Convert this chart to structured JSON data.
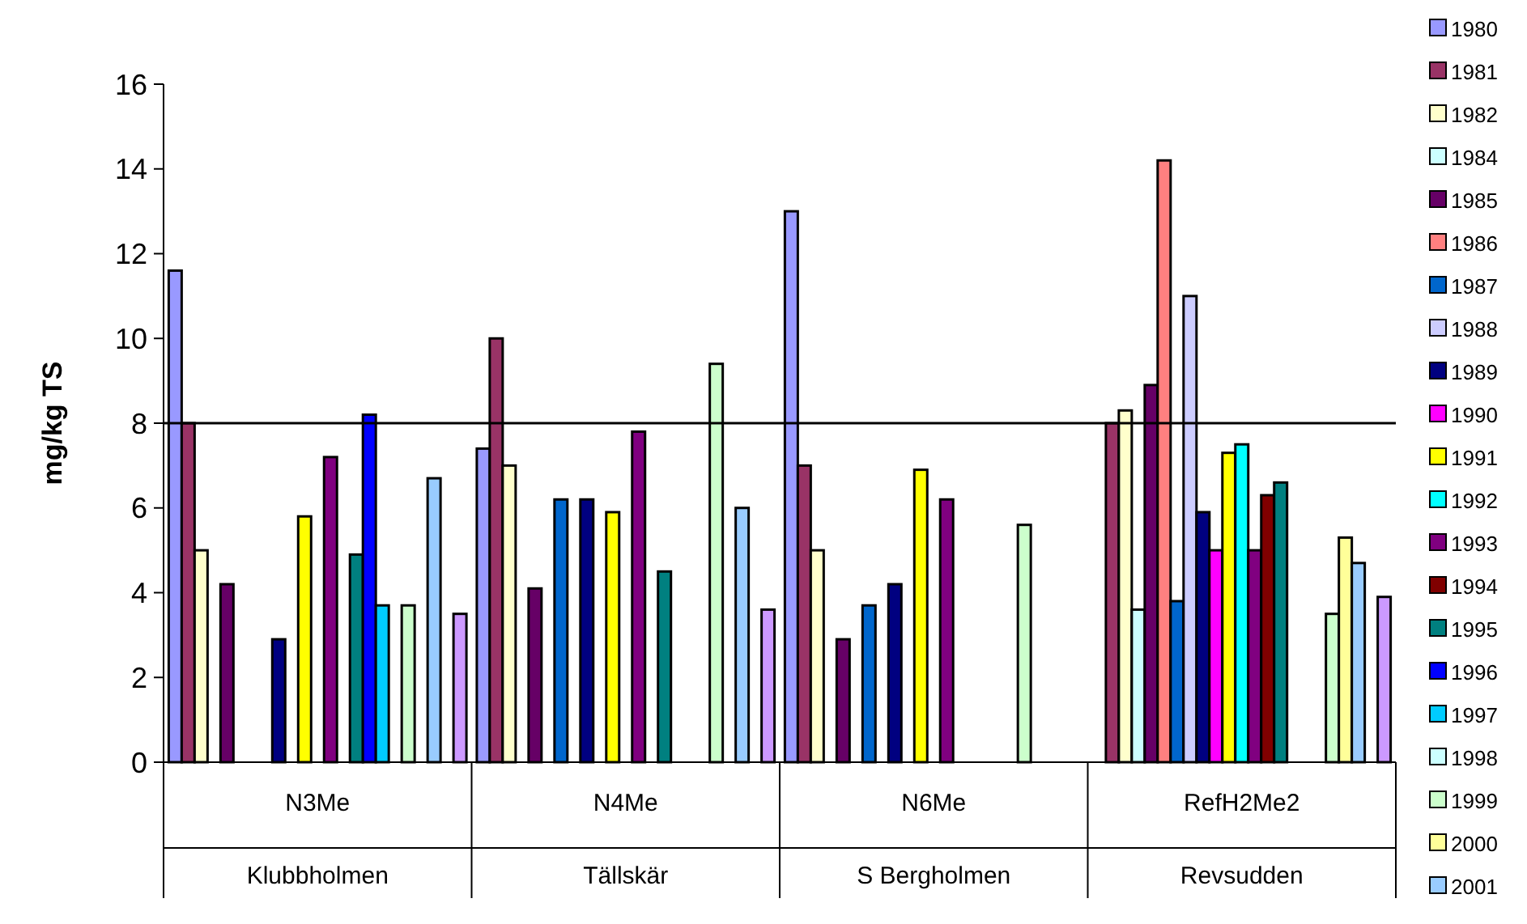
{
  "chart_data": {
    "type": "bar",
    "ylabel": "mg/kg TS",
    "categories": [
      "N3Me\nKlubbholmen",
      "N4Me\nTällskär",
      "N6Me\nS Bergholmen",
      "RefH2Me2\nRevsudden"
    ],
    "ylim": [
      0,
      16
    ],
    "yticks": [
      0,
      2,
      4,
      6,
      8,
      10,
      12,
      14,
      16
    ],
    "grid": false,
    "legend": "right",
    "ref_lines": [
      {
        "axis": "y",
        "value": 8,
        "color": "#000000"
      }
    ],
    "series": [
      {
        "name": "1980",
        "color": "#9999ff",
        "values": [
          11.6,
          7.4,
          13.0,
          null
        ]
      },
      {
        "name": "1981",
        "color": "#993366",
        "values": [
          8.0,
          10.0,
          7.0,
          8.0
        ]
      },
      {
        "name": "1982",
        "color": "#ffffcc",
        "values": [
          5.0,
          7.0,
          5.0,
          8.3
        ]
      },
      {
        "name": "1984",
        "color": "#ccffff",
        "values": [
          null,
          null,
          null,
          3.6
        ]
      },
      {
        "name": "1985",
        "color": "#660066",
        "values": [
          4.2,
          4.1,
          2.9,
          8.9
        ]
      },
      {
        "name": "1986",
        "color": "#ff8080",
        "values": [
          null,
          null,
          null,
          14.2
        ]
      },
      {
        "name": "1987",
        "color": "#0066cc",
        "values": [
          null,
          6.2,
          3.7,
          3.8
        ]
      },
      {
        "name": "1988",
        "color": "#ccccff",
        "values": [
          null,
          null,
          null,
          11.0
        ]
      },
      {
        "name": "1989",
        "color": "#000080",
        "values": [
          2.9,
          6.2,
          4.2,
          5.9
        ]
      },
      {
        "name": "1990",
        "color": "#ff00ff",
        "values": [
          null,
          null,
          null,
          5.0
        ]
      },
      {
        "name": "1991",
        "color": "#ffff00",
        "values": [
          5.8,
          5.9,
          6.9,
          7.3
        ]
      },
      {
        "name": "1992",
        "color": "#00ffff",
        "values": [
          null,
          null,
          null,
          7.5
        ]
      },
      {
        "name": "1993",
        "color": "#800080",
        "values": [
          7.2,
          7.8,
          6.2,
          5.0
        ]
      },
      {
        "name": "1994",
        "color": "#800000",
        "values": [
          null,
          null,
          null,
          6.3
        ]
      },
      {
        "name": "1995",
        "color": "#008080",
        "values": [
          4.9,
          4.5,
          null,
          6.6
        ]
      },
      {
        "name": "1996",
        "color": "#0000ff",
        "values": [
          8.2,
          null,
          null,
          null
        ]
      },
      {
        "name": "1997",
        "color": "#00ccff",
        "values": [
          3.7,
          null,
          null,
          null
        ]
      },
      {
        "name": "1998",
        "color": "#ccffff",
        "values": [
          null,
          null,
          null,
          null
        ]
      },
      {
        "name": "1999",
        "color": "#ccffcc",
        "values": [
          3.7,
          9.4,
          5.6,
          3.5
        ]
      },
      {
        "name": "2000",
        "color": "#ffff99",
        "values": [
          null,
          null,
          null,
          5.3
        ]
      },
      {
        "name": "2001",
        "color": "#99ccff",
        "values": [
          6.7,
          6.0,
          null,
          4.7
        ]
      },
      {
        "values": [
          null,
          null,
          null,
          null
        ]
      },
      {
        "color": "#cc99ff",
        "values": [
          3.5,
          3.6,
          null,
          3.9
        ]
      }
    ]
  }
}
